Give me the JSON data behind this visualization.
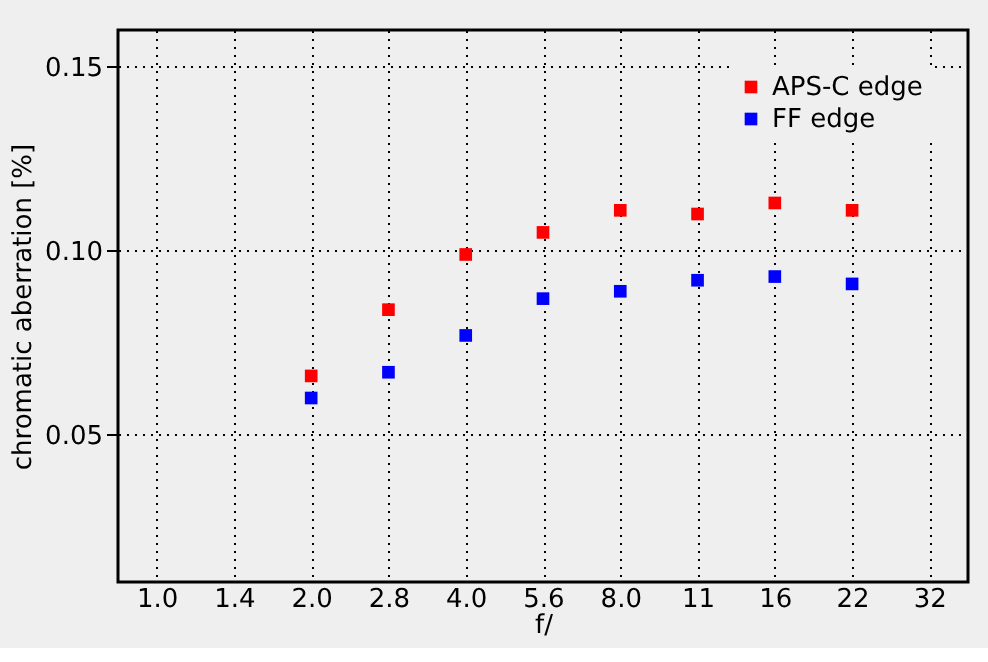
{
  "chart_data": {
    "type": "scatter",
    "xlabel": "f/",
    "ylabel": "chromatic aberration [%]",
    "categories": [
      "1.0",
      "1.4",
      "2.0",
      "2.8",
      "4.0",
      "5.6",
      "8.0",
      "11",
      "16",
      "22",
      "32"
    ],
    "series": [
      {
        "name": "APS-C edge",
        "color": "#ff0000",
        "values": [
          null,
          null,
          0.066,
          0.084,
          0.099,
          0.105,
          0.111,
          0.11,
          0.113,
          0.111,
          null
        ]
      },
      {
        "name": "FF edge",
        "color": "#0000ff",
        "values": [
          null,
          null,
          0.06,
          0.067,
          0.077,
          0.087,
          0.089,
          0.092,
          0.093,
          0.091,
          null
        ]
      }
    ],
    "ylim": [
      0.01,
      0.16
    ],
    "yticks": [
      {
        "value": 0.05,
        "label": "0.05"
      },
      {
        "value": 0.1,
        "label": "0.10"
      },
      {
        "value": 0.15,
        "label": "0.15"
      }
    ],
    "grid": true,
    "legend": "top right",
    "marker": "square"
  }
}
